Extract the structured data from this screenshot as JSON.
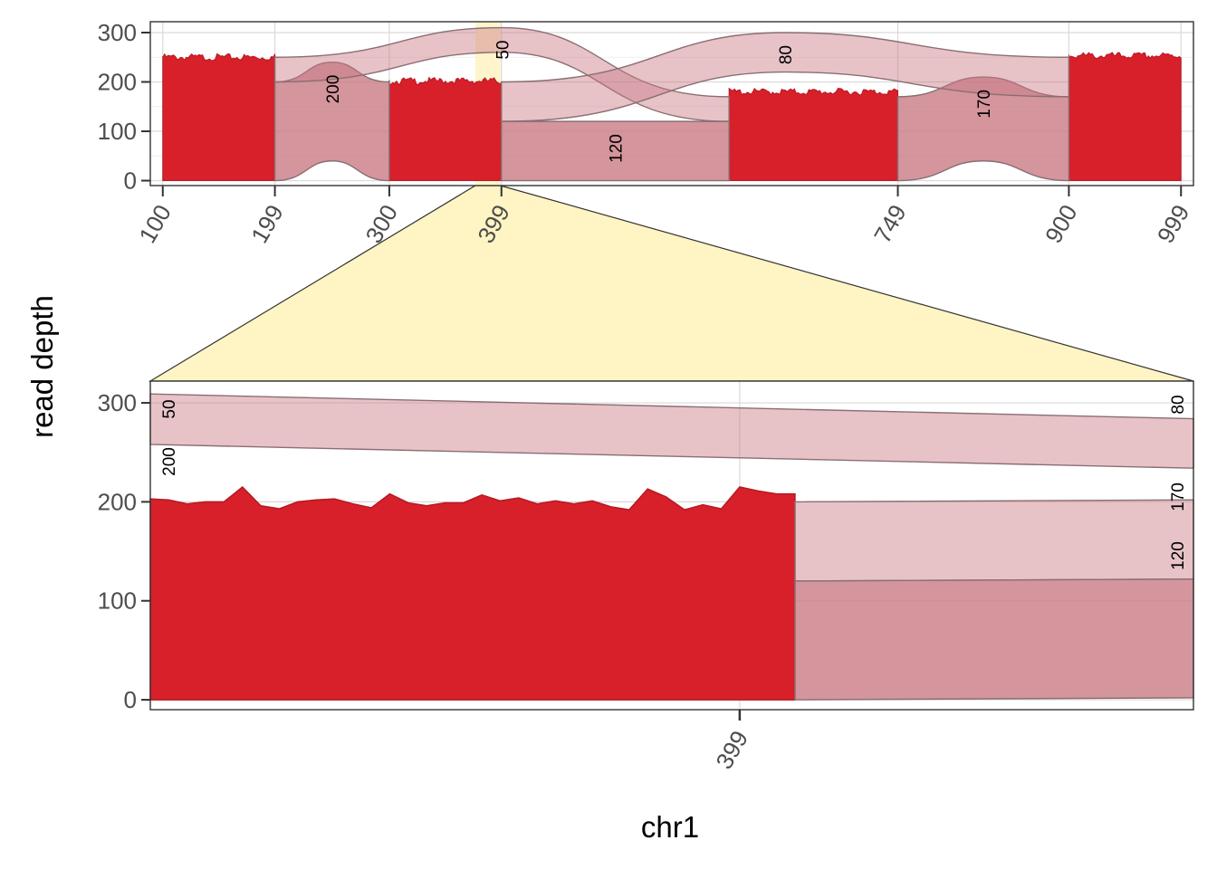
{
  "chart_data": {
    "type": "area",
    "xlabel": "chr1",
    "ylabel": "read depth",
    "colors": {
      "coverage": "#D7202A",
      "junction_fill": "#C97A85",
      "junction_stroke": "#8A6E73",
      "zoom_highlight": "#FFF4C4",
      "grid": "#D9D9D9"
    },
    "overview": {
      "xlim": [
        89,
        1010
      ],
      "ylim": [
        -10,
        322
      ],
      "x_ticks": [
        100,
        199,
        300,
        399,
        749,
        900,
        999
      ],
      "y_ticks": [
        0,
        100,
        200,
        300
      ],
      "grid": true,
      "coverage_segments": [
        {
          "start": 100,
          "end": 199,
          "mean_depth": 252
        },
        {
          "start": 300,
          "end": 399,
          "mean_depth": 204
        },
        {
          "start": 600,
          "end": 749,
          "mean_depth": 182
        },
        {
          "start": 900,
          "end": 999,
          "mean_depth": 255
        }
      ],
      "junctions": [
        {
          "from": 199,
          "to": 300,
          "count": 200,
          "label": "200"
        },
        {
          "from": 199,
          "to": 600,
          "count": 50,
          "label": "50"
        },
        {
          "from": 399,
          "to": 600,
          "count": 120,
          "label": "120"
        },
        {
          "from": 399,
          "to": 900,
          "count": 80,
          "label": "80"
        },
        {
          "from": 749,
          "to": 900,
          "count": 170,
          "label": "170"
        }
      ],
      "zoom_window": {
        "start": 376,
        "end": 398
      }
    },
    "zoom": {
      "xlim": [
        376,
        398
      ],
      "ylim": [
        -10,
        322
      ],
      "x_ticks": [
        399
      ],
      "y_ticks": [
        0,
        100,
        200,
        300
      ],
      "coverage_values": [
        203,
        202,
        198,
        200,
        200,
        215,
        196,
        193,
        200,
        202,
        203,
        198,
        194,
        208,
        199,
        196,
        199,
        199,
        207,
        201,
        204,
        198,
        201,
        198,
        201,
        195,
        192,
        213,
        205,
        192,
        197,
        193,
        215,
        211,
        208,
        208
      ],
      "junction_labels_left": [
        "50",
        "200"
      ],
      "junction_labels_right": [
        "80",
        "170",
        "120"
      ]
    }
  }
}
